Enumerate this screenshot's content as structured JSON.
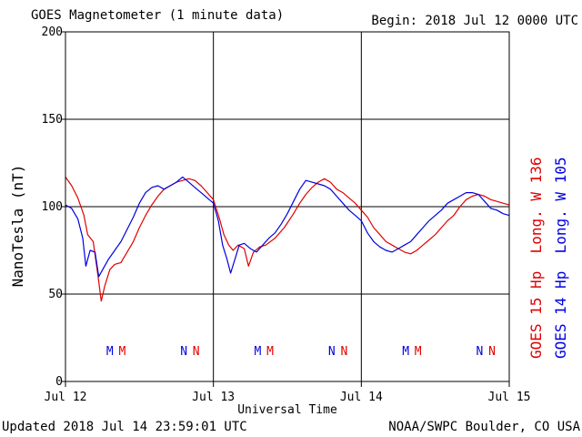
{
  "header": {
    "title": "GOES Magnetometer (1 minute data)",
    "begin": "Begin:  2018 Jul 12 0000 UTC"
  },
  "footer": {
    "updated": "Updated 2018 Jul 14 23:59:01 UTC",
    "credit": "NOAA/SWPC Boulder, CO USA"
  },
  "colors": {
    "goes15": "#e00000",
    "goes14": "#0000e0",
    "grid": "#000000",
    "background": "#ffffff"
  },
  "chart_data": {
    "type": "line",
    "title": "GOES Magnetometer (1 minute data)",
    "xlabel": "Universal Time",
    "ylabel": "NanoTesla (nT)",
    "xlim": [
      0,
      72
    ],
    "ylim": [
      0,
      200
    ],
    "x_unit": "hours since Begin",
    "x_ticks": [
      {
        "x": 0,
        "label": "Jul 12"
      },
      {
        "x": 24,
        "label": "Jul 13"
      },
      {
        "x": 48,
        "label": "Jul 14"
      },
      {
        "x": 72,
        "label": "Jul 15"
      }
    ],
    "y_ticks": [
      0,
      50,
      100,
      150,
      200
    ],
    "grid": true,
    "legend_position": "right",
    "series": [
      {
        "name": "GOES 15 Hp  Long. W 136",
        "color": "#e00000",
        "points": [
          [
            0,
            117
          ],
          [
            1,
            112
          ],
          [
            2,
            105
          ],
          [
            3,
            95
          ],
          [
            3.6,
            84
          ],
          [
            4.5,
            80
          ],
          [
            5.3,
            60
          ],
          [
            5.8,
            46
          ],
          [
            6.4,
            55
          ],
          [
            7.2,
            64
          ],
          [
            8,
            67
          ],
          [
            9,
            68
          ],
          [
            10,
            74
          ],
          [
            11,
            80
          ],
          [
            12,
            88
          ],
          [
            13,
            95
          ],
          [
            14,
            101
          ],
          [
            15,
            106
          ],
          [
            16,
            110
          ],
          [
            17,
            112
          ],
          [
            18,
            114
          ],
          [
            19,
            115
          ],
          [
            20,
            116
          ],
          [
            21,
            115
          ],
          [
            22,
            112
          ],
          [
            23,
            108
          ],
          [
            24,
            104
          ],
          [
            25,
            93
          ],
          [
            25.7,
            84
          ],
          [
            26.5,
            78
          ],
          [
            27.2,
            75
          ],
          [
            28,
            78
          ],
          [
            29,
            76
          ],
          [
            29.7,
            66
          ],
          [
            30.5,
            74
          ],
          [
            31.5,
            77
          ],
          [
            32.5,
            78
          ],
          [
            34,
            82
          ],
          [
            35.5,
            88
          ],
          [
            37,
            96
          ],
          [
            38,
            102
          ],
          [
            39,
            107
          ],
          [
            40,
            111
          ],
          [
            41,
            114
          ],
          [
            42,
            116
          ],
          [
            43,
            114
          ],
          [
            44,
            110
          ],
          [
            45,
            108
          ],
          [
            46,
            105
          ],
          [
            47,
            102
          ],
          [
            48,
            98
          ],
          [
            49,
            94
          ],
          [
            50,
            88
          ],
          [
            51,
            84
          ],
          [
            52,
            80
          ],
          [
            53,
            78
          ],
          [
            54,
            76
          ],
          [
            55,
            74
          ],
          [
            56,
            73
          ],
          [
            57,
            75
          ],
          [
            58,
            78
          ],
          [
            59,
            81
          ],
          [
            60,
            84
          ],
          [
            61,
            88
          ],
          [
            62,
            92
          ],
          [
            63,
            95
          ],
          [
            64,
            100
          ],
          [
            65,
            104
          ],
          [
            66,
            106
          ],
          [
            67,
            107
          ],
          [
            68,
            106
          ],
          [
            69,
            104
          ],
          [
            70,
            103
          ],
          [
            71,
            102
          ],
          [
            72,
            101
          ]
        ]
      },
      {
        "name": "GOES 14 Hp  Long. W 105",
        "color": "#0000e0",
        "points": [
          [
            0,
            101
          ],
          [
            1,
            99
          ],
          [
            2,
            93
          ],
          [
            2.8,
            82
          ],
          [
            3.3,
            66
          ],
          [
            4,
            75
          ],
          [
            4.8,
            74
          ],
          [
            5.4,
            60
          ],
          [
            6.2,
            65
          ],
          [
            7,
            70
          ],
          [
            8,
            75
          ],
          [
            9,
            80
          ],
          [
            10,
            87
          ],
          [
            11,
            94
          ],
          [
            12,
            102
          ],
          [
            13,
            108
          ],
          [
            14,
            111
          ],
          [
            15,
            112
          ],
          [
            16,
            110
          ],
          [
            17,
            112
          ],
          [
            18,
            114
          ],
          [
            19,
            117
          ],
          [
            20,
            114
          ],
          [
            21,
            111
          ],
          [
            22,
            108
          ],
          [
            23,
            105
          ],
          [
            24,
            102
          ],
          [
            24.8,
            92
          ],
          [
            25.5,
            78
          ],
          [
            26.2,
            70
          ],
          [
            26.8,
            62
          ],
          [
            27.5,
            70
          ],
          [
            28.2,
            78
          ],
          [
            29,
            79
          ],
          [
            30,
            76
          ],
          [
            31,
            74
          ],
          [
            32,
            78
          ],
          [
            33,
            82
          ],
          [
            34,
            85
          ],
          [
            35,
            90
          ],
          [
            36,
            96
          ],
          [
            37,
            103
          ],
          [
            38,
            110
          ],
          [
            39,
            115
          ],
          [
            40,
            114
          ],
          [
            41,
            113
          ],
          [
            42,
            112
          ],
          [
            43,
            110
          ],
          [
            44,
            106
          ],
          [
            45,
            102
          ],
          [
            46,
            98
          ],
          [
            47,
            95
          ],
          [
            48,
            92
          ],
          [
            49,
            85
          ],
          [
            50,
            80
          ],
          [
            51,
            77
          ],
          [
            52,
            75
          ],
          [
            53,
            74
          ],
          [
            54,
            76
          ],
          [
            55,
            78
          ],
          [
            56,
            80
          ],
          [
            57,
            84
          ],
          [
            58,
            88
          ],
          [
            59,
            92
          ],
          [
            60,
            95
          ],
          [
            61,
            98
          ],
          [
            62,
            102
          ],
          [
            63,
            104
          ],
          [
            64,
            106
          ],
          [
            65,
            108
          ],
          [
            66,
            108
          ],
          [
            67,
            107
          ],
          [
            68,
            103
          ],
          [
            69,
            99
          ],
          [
            70,
            98
          ],
          [
            71,
            96
          ],
          [
            72,
            95
          ]
        ]
      }
    ],
    "annotations": [
      {
        "x": 7.2,
        "label": "M",
        "series": "GOES 14 Hp  Long. W 105",
        "color": "#0000e0"
      },
      {
        "x": 9.2,
        "label": "M",
        "series": "GOES 15 Hp  Long. W 136",
        "color": "#e00000"
      },
      {
        "x": 19.2,
        "label": "N",
        "series": "GOES 14 Hp  Long. W 105",
        "color": "#0000e0"
      },
      {
        "x": 21.2,
        "label": "N",
        "series": "GOES 15 Hp  Long. W 136",
        "color": "#e00000"
      },
      {
        "x": 31.2,
        "label": "M",
        "series": "GOES 14 Hp  Long. W 105",
        "color": "#0000e0"
      },
      {
        "x": 33.2,
        "label": "M",
        "series": "GOES 15 Hp  Long. W 136",
        "color": "#e00000"
      },
      {
        "x": 43.2,
        "label": "N",
        "series": "GOES 14 Hp  Long. W 105",
        "color": "#0000e0"
      },
      {
        "x": 45.2,
        "label": "N",
        "series": "GOES 15 Hp  Long. W 136",
        "color": "#e00000"
      },
      {
        "x": 55.2,
        "label": "M",
        "series": "GOES 14 Hp  Long. W 105",
        "color": "#0000e0"
      },
      {
        "x": 57.2,
        "label": "M",
        "series": "GOES 15 Hp  Long. W 136",
        "color": "#e00000"
      },
      {
        "x": 67.2,
        "label": "N",
        "series": "GOES 14 Hp  Long. W 105",
        "color": "#0000e0"
      },
      {
        "x": 69.2,
        "label": "N",
        "series": "GOES 15 Hp  Long. W 136",
        "color": "#e00000"
      }
    ]
  }
}
